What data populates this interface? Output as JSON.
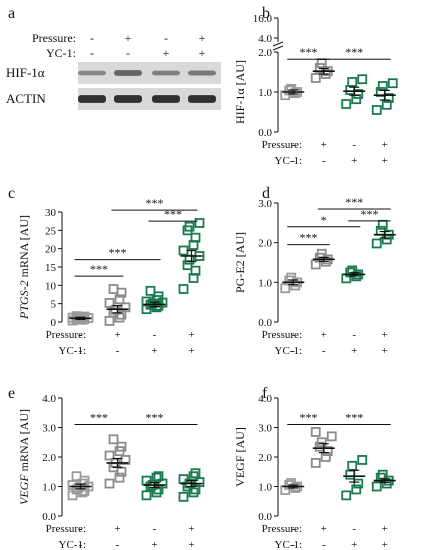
{
  "treatment_labels": {
    "pressure": "Pressure:",
    "yc1": "YC-1:"
  },
  "treatment_signs": {
    "pressure": [
      "-",
      "+",
      "-",
      "+"
    ],
    "yc1": [
      "-",
      "-",
      "+",
      "+"
    ]
  },
  "colors": {
    "control": "#9a9a9a",
    "pressure": "#8a8a8a",
    "yc1": "#1a7a4e",
    "blot_bg": "#d9d9d9"
  },
  "western_blot": {
    "panel_letter": "a",
    "rows": [
      {
        "label": "HIF-1α",
        "intensity": [
          0.3,
          0.55,
          0.35,
          0.4
        ]
      },
      {
        "label": "ACTIN",
        "intensity": [
          0.95,
          0.95,
          0.95,
          0.95
        ]
      }
    ]
  },
  "chart_data": [
    {
      "panel_letter": "b",
      "type": "scatter",
      "ylabel": "HIF-1α [AU]",
      "axis_break": true,
      "ylim_lower": [
        0,
        2.0
      ],
      "ylim_upper": [
        4.0,
        16.0
      ],
      "yticks": [
        "0.0",
        "1.0",
        "2.0"
      ],
      "yticks_upper": [
        "4.0",
        "16.0"
      ],
      "groups": [
        {
          "pressure": "-",
          "yc1": "-",
          "color": "control",
          "mean": 1.0,
          "sem": 0.05,
          "points": [
            0.92,
            0.97,
            1.0,
            1.04,
            1.08
          ]
        },
        {
          "pressure": "+",
          "yc1": "-",
          "color": "pressure",
          "mean": 1.52,
          "sem": 0.07,
          "points": [
            1.35,
            1.45,
            1.52,
            1.6,
            1.72
          ]
        },
        {
          "pressure": "-",
          "yc1": "+",
          "color": "yc1",
          "mean": 1.02,
          "sem": 0.1,
          "points": [
            0.7,
            0.82,
            0.95,
            1.05,
            1.25,
            1.32
          ]
        },
        {
          "pressure": "+",
          "yc1": "+",
          "color": "yc1",
          "mean": 0.92,
          "sem": 0.12,
          "points": [
            0.55,
            0.68,
            0.85,
            1.0,
            1.15,
            1.22
          ]
        }
      ],
      "significance": [
        {
          "from": 0,
          "to": 1,
          "label": "***",
          "y": 1.82
        },
        {
          "from": 1,
          "to": 3,
          "label": "***",
          "y": 1.82
        }
      ]
    },
    {
      "panel_letter": "c",
      "type": "scatter",
      "ylabel_italic": "PTGS-2",
      "ylabel": " mRNA [AU]",
      "ylim": [
        0,
        30
      ],
      "yticks": [
        "0",
        "5",
        "10",
        "15",
        "20",
        "25",
        "30"
      ],
      "groups": [
        {
          "pressure": "-",
          "yc1": "-",
          "color": "control",
          "mean": 1.0,
          "sem": 0.3,
          "points": [
            0.4,
            0.6,
            0.8,
            0.9,
            1.0,
            1.1,
            1.2,
            1.4,
            1.5,
            1.6
          ]
        },
        {
          "pressure": "+",
          "yc1": "-",
          "color": "pressure",
          "mean": 3.5,
          "sem": 1.0,
          "points": [
            0.3,
            1.2,
            2.0,
            2.6,
            3.3,
            4.0,
            5.2,
            6.2,
            8.0,
            9.0
          ]
        },
        {
          "pressure": "-",
          "yc1": "+",
          "color": "yc1",
          "mean": 4.8,
          "sem": 0.6,
          "points": [
            3.5,
            4.0,
            4.4,
            4.7,
            5.0,
            5.3,
            5.6,
            6.0,
            7.0,
            8.5
          ]
        },
        {
          "pressure": "+",
          "yc1": "+",
          "color": "yc1",
          "mean": 18.0,
          "sem": 1.5,
          "points": [
            9.0,
            12.0,
            14.0,
            15.5,
            17.0,
            18.0,
            19.5,
            21.0,
            23.0,
            25.0,
            26.0,
            27.0
          ]
        }
      ],
      "significance": [
        {
          "from": 0,
          "to": 1,
          "label": "***",
          "y": 12.5
        },
        {
          "from": 0,
          "to": 2,
          "label": "***",
          "y": 17.0
        },
        {
          "from": 2,
          "to": 3,
          "label": "***",
          "y": 27.5
        },
        {
          "from": 1,
          "to": 3,
          "label": "***",
          "y": 30.5
        }
      ]
    },
    {
      "panel_letter": "d",
      "type": "scatter",
      "ylabel": "PG-E2 [AU]",
      "ylim": [
        0,
        3.0
      ],
      "yticks": [
        "0.0",
        "1.0",
        "2.0",
        "3.0"
      ],
      "groups": [
        {
          "pressure": "-",
          "yc1": "-",
          "color": "control",
          "mean": 1.0,
          "sem": 0.06,
          "points": [
            0.85,
            0.92,
            1.0,
            1.05,
            1.12
          ]
        },
        {
          "pressure": "+",
          "yc1": "-",
          "color": "pressure",
          "mean": 1.58,
          "sem": 0.05,
          "points": [
            1.45,
            1.52,
            1.58,
            1.62,
            1.72
          ]
        },
        {
          "pressure": "-",
          "yc1": "+",
          "color": "yc1",
          "mean": 1.2,
          "sem": 0.04,
          "points": [
            1.1,
            1.15,
            1.2,
            1.25,
            1.3
          ]
        },
        {
          "pressure": "+",
          "yc1": "+",
          "color": "yc1",
          "mean": 2.2,
          "sem": 0.08,
          "points": [
            1.98,
            2.08,
            2.2,
            2.3,
            2.45
          ]
        }
      ],
      "significance": [
        {
          "from": 0,
          "to": 1,
          "label": "***",
          "y": 1.95
        },
        {
          "from": 0,
          "to": 2,
          "label": "*",
          "y": 2.4
        },
        {
          "from": 2,
          "to": 3,
          "label": "***",
          "y": 2.55
        },
        {
          "from": 1,
          "to": 3,
          "label": "***",
          "y": 2.85
        }
      ]
    },
    {
      "panel_letter": "e",
      "type": "scatter",
      "ylabel_italic": "VEGF",
      "ylabel": " mRNA [AU]",
      "ylim": [
        0,
        4.0
      ],
      "yticks": [
        "0.0",
        "1.0",
        "2.0",
        "3.0",
        "4.0"
      ],
      "groups": [
        {
          "pressure": "-",
          "yc1": "-",
          "color": "control",
          "mean": 1.0,
          "sem": 0.08,
          "points": [
            0.7,
            0.8,
            0.85,
            0.9,
            0.95,
            1.0,
            1.05,
            1.1,
            1.2,
            1.35
          ]
        },
        {
          "pressure": "+",
          "yc1": "-",
          "color": "pressure",
          "mean": 1.8,
          "sem": 0.15,
          "points": [
            1.1,
            1.3,
            1.5,
            1.65,
            1.8,
            1.9,
            2.05,
            2.2,
            2.35,
            2.6
          ]
        },
        {
          "pressure": "-",
          "yc1": "+",
          "color": "yc1",
          "mean": 1.05,
          "sem": 0.08,
          "points": [
            0.7,
            0.8,
            0.9,
            1.0,
            1.05,
            1.1,
            1.2,
            1.3,
            1.35
          ]
        },
        {
          "pressure": "+",
          "yc1": "+",
          "color": "yc1",
          "mean": 1.1,
          "sem": 0.1,
          "points": [
            0.65,
            0.8,
            0.9,
            1.0,
            1.1,
            1.15,
            1.25,
            1.35,
            1.45
          ]
        }
      ],
      "significance": [
        {
          "from": 0,
          "to": 1,
          "label": "***",
          "y": 3.1
        },
        {
          "from": 1,
          "to": 3,
          "label": "***",
          "y": 3.1
        }
      ]
    },
    {
      "panel_letter": "f",
      "type": "scatter",
      "ylabel": "VEGF [AU]",
      "ylim": [
        0,
        4.0
      ],
      "yticks": [
        "0.0",
        "1.0",
        "2.0",
        "3.0",
        "4.0"
      ],
      "groups": [
        {
          "pressure": "-",
          "yc1": "-",
          "color": "control",
          "mean": 1.0,
          "sem": 0.05,
          "points": [
            0.88,
            0.95,
            1.0,
            1.05,
            1.12
          ]
        },
        {
          "pressure": "+",
          "yc1": "-",
          "color": "pressure",
          "mean": 2.3,
          "sem": 0.15,
          "points": [
            1.8,
            2.0,
            2.2,
            2.35,
            2.5,
            2.7,
            2.85
          ]
        },
        {
          "pressure": "-",
          "yc1": "+",
          "color": "yc1",
          "mean": 1.35,
          "sem": 0.2,
          "points": [
            0.7,
            0.9,
            1.1,
            1.4,
            1.7,
            1.9
          ]
        },
        {
          "pressure": "+",
          "yc1": "+",
          "color": "yc1",
          "mean": 1.2,
          "sem": 0.06,
          "points": [
            1.0,
            1.1,
            1.2,
            1.3,
            1.4
          ]
        }
      ],
      "significance": [
        {
          "from": 0,
          "to": 1,
          "label": "***",
          "y": 3.1
        },
        {
          "from": 1,
          "to": 3,
          "label": "***",
          "y": 3.1
        }
      ]
    }
  ]
}
